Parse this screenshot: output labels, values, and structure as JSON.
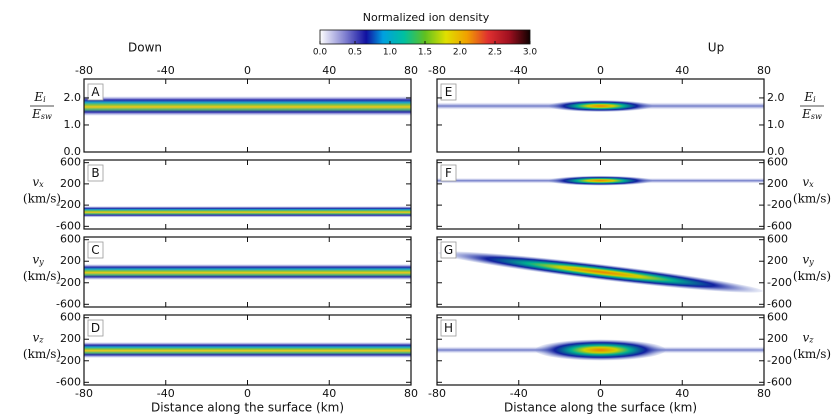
{
  "colorbar": {
    "title": "Normalized ion density",
    "lim": [
      0,
      3
    ],
    "ticks": [
      {
        "value": 0,
        "label": "0.0"
      },
      {
        "value": 0.5,
        "label": "0.5"
      },
      {
        "value": 1,
        "label": "1.0"
      },
      {
        "value": 1.5,
        "label": "1.5"
      },
      {
        "value": 2,
        "label": "2.0"
      },
      {
        "value": 2.5,
        "label": "2.5"
      },
      {
        "value": 3,
        "label": "3.0"
      }
    ]
  },
  "columns": [
    {
      "title": "Down"
    },
    {
      "title": "Up"
    }
  ],
  "chart_data": [
    {
      "type": "heatmap",
      "label": "A",
      "xlim": [
        -80,
        80
      ],
      "xticks": [
        -80,
        -40,
        0,
        40,
        80
      ],
      "ylim": [
        0,
        2.7
      ],
      "yticks": [
        {
          "value": 0,
          "label": "0.0"
        },
        {
          "value": 1,
          "label": "1.0"
        },
        {
          "value": 2,
          "label": "2.0"
        }
      ],
      "ylabel": {
        "symbol": "E",
        "sub": "i",
        "denominator_symbol": "E",
        "denominator_sub": "sw"
      }
    },
    {
      "type": "heatmap",
      "label": "B",
      "xlim": [
        -80,
        80
      ],
      "xticks": [
        -80,
        -40,
        0,
        40,
        80
      ],
      "ylim": [
        -650,
        650
      ],
      "yticks": [
        -600,
        -200,
        200,
        600
      ],
      "ylabel": {
        "symbol": "v",
        "sub": "x",
        "unit": "(km/s)"
      }
    },
    {
      "type": "heatmap",
      "label": "C",
      "xlim": [
        -80,
        80
      ],
      "xticks": [
        -80,
        -40,
        0,
        40,
        80
      ],
      "ylim": [
        -650,
        650
      ],
      "yticks": [
        -600,
        -200,
        200,
        600
      ],
      "ylabel": {
        "symbol": "v",
        "sub": "y",
        "unit": "(km/s)"
      }
    },
    {
      "type": "heatmap",
      "label": "D",
      "xlim": [
        -80,
        80
      ],
      "xticks": [
        -80,
        -40,
        0,
        40,
        80
      ],
      "ylim": [
        -650,
        650
      ],
      "yticks": [
        -600,
        -200,
        200,
        600
      ],
      "ylabel": {
        "symbol": "v",
        "sub": "z",
        "unit": "(km/s)"
      },
      "xlabel": "Distance along the surface (km)"
    },
    {
      "type": "heatmap",
      "label": "E",
      "xlim": [
        -80,
        80
      ],
      "xticks": [
        -80,
        -40,
        0,
        40,
        80
      ],
      "ylim": [
        0,
        2.7
      ],
      "yticks": [
        {
          "value": 0,
          "label": "0.0"
        },
        {
          "value": 1,
          "label": "1.0"
        },
        {
          "value": 2,
          "label": "2.0"
        }
      ],
      "ylabel": {
        "symbol": "E",
        "sub": "i",
        "denominator_symbol": "E",
        "denominator_sub": "sw"
      }
    },
    {
      "type": "heatmap",
      "label": "F",
      "xlim": [
        -80,
        80
      ],
      "xticks": [
        -80,
        -40,
        0,
        40,
        80
      ],
      "ylim": [
        -650,
        650
      ],
      "yticks": [
        -600,
        -200,
        200,
        600
      ],
      "ylabel": {
        "symbol": "v",
        "sub": "x",
        "unit": "(km/s)"
      }
    },
    {
      "type": "heatmap",
      "label": "G",
      "xlim": [
        -80,
        80
      ],
      "xticks": [
        -80,
        -40,
        0,
        40,
        80
      ],
      "ylim": [
        -650,
        650
      ],
      "yticks": [
        -600,
        -200,
        200,
        600
      ],
      "ylabel": {
        "symbol": "v",
        "sub": "y",
        "unit": "(km/s)"
      }
    },
    {
      "type": "heatmap",
      "label": "H",
      "xlim": [
        -80,
        80
      ],
      "xticks": [
        -80,
        -40,
        0,
        40,
        80
      ],
      "ylim": [
        -650,
        650
      ],
      "yticks": [
        -600,
        -200,
        200,
        600
      ],
      "ylabel": {
        "symbol": "v",
        "sub": "z",
        "unit": "(km/s)"
      },
      "xlabel": "Distance along the surface (km)"
    }
  ]
}
